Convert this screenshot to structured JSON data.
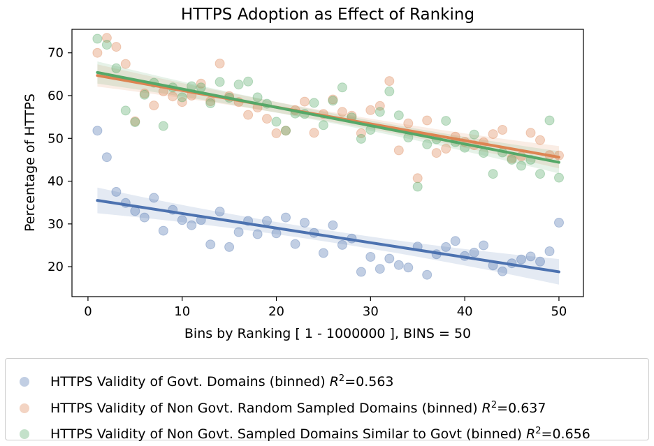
{
  "chart_data": {
    "type": "scatter",
    "title": "HTTPS Adoption as Effect of Ranking",
    "xlabel": "Bins by Ranking [ 1 - 1000000 ], BINS = 50",
    "ylabel": "Percentage of HTTPS",
    "xlim": [
      -1.7,
      52.6
    ],
    "ylim": [
      13,
      75.5
    ],
    "xticks": [
      0,
      10,
      20,
      30,
      40,
      50
    ],
    "yticks": [
      20,
      30,
      40,
      50,
      60,
      70
    ],
    "grid": false,
    "legend_position": "bottom",
    "series": [
      {
        "name": "HTTPS Validity of Govt. Domains (binned)",
        "r2_label": "R",
        "r2_value": "=0.563",
        "color": "#4c72b0",
        "x": [
          1,
          2,
          3,
          4,
          5,
          6,
          7,
          8,
          9,
          10,
          11,
          12,
          13,
          14,
          15,
          16,
          17,
          18,
          19,
          20,
          21,
          22,
          23,
          24,
          25,
          26,
          27,
          28,
          29,
          30,
          31,
          32,
          33,
          34,
          35,
          36,
          37,
          38,
          39,
          40,
          41,
          42,
          43,
          44,
          45,
          46,
          47,
          48,
          49,
          50
        ],
        "y": [
          51.8,
          45.6,
          37.5,
          34.9,
          33.0,
          31.5,
          36.1,
          28.4,
          33.3,
          30.9,
          29.7,
          30.9,
          25.2,
          32.9,
          24.6,
          28.1,
          30.7,
          27.6,
          30.7,
          27.8,
          31.5,
          25.3,
          30.3,
          27.9,
          23.2,
          29.7,
          25.1,
          26.6,
          18.8,
          22.3,
          19.5,
          21.9,
          20.4,
          19.8,
          24.7,
          18.1,
          22.9,
          24.6,
          26.0,
          22.5,
          23.3,
          25.0,
          20.3,
          18.9,
          20.8,
          21.7,
          22.4,
          21.2,
          23.6,
          30.3
        ],
        "fit": [
          35.5,
          18.8
        ]
      },
      {
        "name": "HTTPS Validity of Non Govt. Random Sampled Domains (binned)",
        "r2_label": "R",
        "r2_value": "=0.637",
        "color": "#dd8452",
        "x": [
          1,
          2,
          3,
          4,
          5,
          6,
          7,
          8,
          9,
          10,
          11,
          12,
          13,
          14,
          15,
          16,
          17,
          18,
          19,
          20,
          21,
          22,
          23,
          24,
          25,
          26,
          27,
          28,
          29,
          30,
          31,
          32,
          33,
          34,
          35,
          36,
          37,
          38,
          39,
          40,
          41,
          42,
          43,
          44,
          45,
          46,
          47,
          48,
          49,
          50
        ],
        "y": [
          70.0,
          73.5,
          71.4,
          67.4,
          54.0,
          60.5,
          57.7,
          61.0,
          59.8,
          58.5,
          60.0,
          62.8,
          58.7,
          67.5,
          59.9,
          58.5,
          55.5,
          57.2,
          54.6,
          51.2,
          51.8,
          56.6,
          58.6,
          51.3,
          55.7,
          59.1,
          56.2,
          55.3,
          51.2,
          56.6,
          57.6,
          63.4,
          47.2,
          53.5,
          40.7,
          54.2,
          46.6,
          47.6,
          50.4,
          49.2,
          48.4,
          49.1,
          51.0,
          52.0,
          45.3,
          45.8,
          51.3,
          49.6,
          46.1,
          46.0
        ],
        "fit": [
          64.7,
          45.6
        ]
      },
      {
        "name": "HTTPS Validity of Non Govt. Sampled Domains Similar to Govt (binned)",
        "r2_label": "R",
        "r2_value": "=0.656",
        "color": "#55a868",
        "x": [
          1,
          2,
          3,
          4,
          5,
          6,
          7,
          8,
          9,
          10,
          11,
          12,
          13,
          14,
          15,
          16,
          17,
          18,
          19,
          20,
          21,
          22,
          23,
          24,
          25,
          26,
          27,
          28,
          29,
          30,
          31,
          32,
          33,
          34,
          35,
          36,
          37,
          38,
          39,
          40,
          41,
          42,
          43,
          44,
          45,
          46,
          47,
          48,
          49,
          50
        ],
        "y": [
          73.3,
          71.9,
          66.4,
          56.5,
          53.8,
          60.2,
          63.0,
          52.9,
          61.9,
          59.6,
          62.2,
          61.9,
          58.2,
          63.2,
          59.5,
          62.6,
          63.3,
          59.6,
          58.1,
          53.9,
          51.8,
          55.8,
          55.7,
          58.3,
          53.1,
          58.8,
          61.9,
          54.9,
          49.9,
          52.0,
          56.2,
          61.0,
          55.4,
          50.2,
          38.7,
          48.6,
          49.8,
          54.1,
          49.1,
          47.8,
          50.9,
          46.6,
          41.7,
          46.7,
          45.0,
          43.6,
          45.0,
          41.7,
          54.2,
          40.8
        ],
        "fit": [
          65.4,
          44.4
        ]
      }
    ]
  }
}
